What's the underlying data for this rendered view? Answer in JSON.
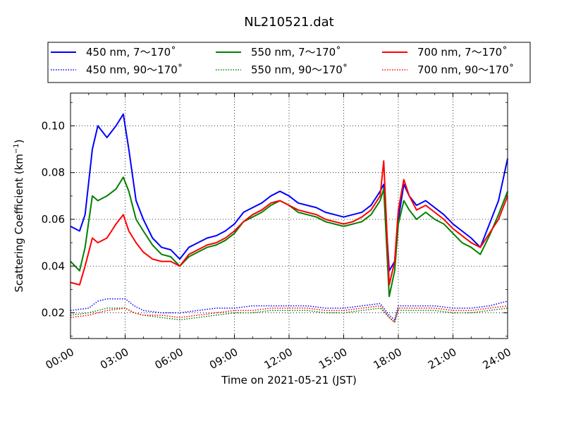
{
  "chart_data": {
    "type": "line",
    "title": "NL210521.dat",
    "xlabel": "Time on 2021-05-21 (JST)",
    "ylabel_main": "Scattering Coefficient (km",
    "ylabel_sup": "−1",
    "ylabel_end": ")",
    "xlim": [
      0,
      24
    ],
    "ylim": [
      0.009,
      0.114
    ],
    "grid": true,
    "legend_position": "top",
    "xticks": [
      {
        "value": 0,
        "label": "00:00"
      },
      {
        "value": 3,
        "label": "03:00"
      },
      {
        "value": 6,
        "label": "06:00"
      },
      {
        "value": 9,
        "label": "09:00"
      },
      {
        "value": 12,
        "label": "12:00"
      },
      {
        "value": 15,
        "label": "15:00"
      },
      {
        "value": 18,
        "label": "18:00"
      },
      {
        "value": 21,
        "label": "21:00"
      },
      {
        "value": 24,
        "label": "24:00"
      }
    ],
    "yticks": [
      {
        "value": 0.02,
        "label": "0.02"
      },
      {
        "value": 0.04,
        "label": "0.04"
      },
      {
        "value": 0.06,
        "label": "0.06"
      },
      {
        "value": 0.08,
        "label": "0.08"
      },
      {
        "value": 0.1,
        "label": "0.10"
      }
    ],
    "series": [
      {
        "name": "450 nm, 7～170˚",
        "color": "#0000ff",
        "style": "solid",
        "x": [
          0,
          0.5,
          0.8,
          1.2,
          1.5,
          2,
          2.5,
          2.9,
          3.2,
          3.6,
          4,
          4.5,
          5,
          5.5,
          6,
          6.5,
          7,
          7.5,
          8,
          8.5,
          9,
          9.5,
          10,
          10.5,
          11,
          11.5,
          12,
          12.5,
          13,
          13.5,
          14,
          14.5,
          15,
          15.5,
          16,
          16.5,
          17,
          17.2,
          17.5,
          17.8,
          18,
          18.3,
          18.6,
          19,
          19.5,
          20,
          20.5,
          21,
          21.5,
          22,
          22.5,
          23,
          23.5,
          24
        ],
        "y": [
          0.057,
          0.055,
          0.062,
          0.09,
          0.1,
          0.095,
          0.1,
          0.105,
          0.09,
          0.068,
          0.06,
          0.052,
          0.048,
          0.047,
          0.043,
          0.048,
          0.05,
          0.052,
          0.053,
          0.055,
          0.058,
          0.063,
          0.065,
          0.067,
          0.07,
          0.072,
          0.07,
          0.067,
          0.066,
          0.065,
          0.063,
          0.062,
          0.061,
          0.062,
          0.063,
          0.066,
          0.072,
          0.075,
          0.038,
          0.042,
          0.06,
          0.075,
          0.07,
          0.066,
          0.068,
          0.065,
          0.062,
          0.058,
          0.055,
          0.052,
          0.048,
          0.058,
          0.068,
          0.086
        ]
      },
      {
        "name": "550 nm, 7～170˚",
        "color": "#008000",
        "style": "solid",
        "x": [
          0,
          0.5,
          0.8,
          1.2,
          1.5,
          2,
          2.5,
          2.9,
          3.2,
          3.6,
          4,
          4.5,
          5,
          5.5,
          6,
          6.5,
          7,
          7.5,
          8,
          8.5,
          9,
          9.5,
          10,
          10.5,
          11,
          11.5,
          12,
          12.5,
          13,
          13.5,
          14,
          14.5,
          15,
          15.5,
          16,
          16.5,
          17,
          17.2,
          17.5,
          17.8,
          18,
          18.3,
          18.6,
          19,
          19.5,
          20,
          20.5,
          21,
          21.5,
          22,
          22.5,
          23,
          23.5,
          24
        ],
        "y": [
          0.042,
          0.038,
          0.048,
          0.07,
          0.068,
          0.07,
          0.073,
          0.078,
          0.072,
          0.06,
          0.055,
          0.049,
          0.045,
          0.044,
          0.04,
          0.044,
          0.046,
          0.048,
          0.049,
          0.051,
          0.054,
          0.059,
          0.061,
          0.063,
          0.066,
          0.068,
          0.066,
          0.063,
          0.062,
          0.061,
          0.059,
          0.058,
          0.057,
          0.058,
          0.059,
          0.062,
          0.068,
          0.073,
          0.027,
          0.038,
          0.058,
          0.068,
          0.064,
          0.06,
          0.063,
          0.06,
          0.058,
          0.054,
          0.05,
          0.048,
          0.045,
          0.053,
          0.062,
          0.072
        ]
      },
      {
        "name": "700 nm, 7～170˚",
        "color": "#ff0000",
        "style": "solid",
        "x": [
          0,
          0.5,
          0.8,
          1.2,
          1.5,
          2,
          2.5,
          2.9,
          3.2,
          3.6,
          4,
          4.5,
          5,
          5.5,
          6,
          6.5,
          7,
          7.5,
          8,
          8.5,
          9,
          9.5,
          10,
          10.5,
          11,
          11.5,
          12,
          12.5,
          13,
          13.5,
          14,
          14.5,
          15,
          15.5,
          16,
          16.5,
          17,
          17.2,
          17.5,
          17.8,
          18,
          18.3,
          18.6,
          19,
          19.5,
          20,
          20.5,
          21,
          21.5,
          22,
          22.5,
          23,
          23.5,
          24
        ],
        "y": [
          0.033,
          0.032,
          0.04,
          0.052,
          0.05,
          0.052,
          0.058,
          0.062,
          0.055,
          0.05,
          0.046,
          0.043,
          0.042,
          0.042,
          0.04,
          0.045,
          0.047,
          0.049,
          0.05,
          0.052,
          0.055,
          0.059,
          0.062,
          0.064,
          0.067,
          0.068,
          0.066,
          0.064,
          0.063,
          0.062,
          0.06,
          0.059,
          0.058,
          0.059,
          0.061,
          0.064,
          0.07,
          0.085,
          0.032,
          0.042,
          0.064,
          0.077,
          0.07,
          0.064,
          0.066,
          0.063,
          0.06,
          0.056,
          0.053,
          0.05,
          0.048,
          0.054,
          0.06,
          0.07
        ]
      },
      {
        "name": "450 nm, 90～170˚",
        "color": "#0000ff",
        "style": "dotted",
        "x": [
          0,
          1,
          1.5,
          2,
          3,
          3.5,
          4,
          5,
          6,
          7,
          8,
          9,
          10,
          11,
          12,
          13,
          14,
          15,
          16,
          17,
          17.5,
          17.8,
          18,
          19,
          20,
          21,
          22,
          23,
          24
        ],
        "y": [
          0.021,
          0.022,
          0.025,
          0.026,
          0.026,
          0.023,
          0.021,
          0.02,
          0.02,
          0.021,
          0.022,
          0.022,
          0.023,
          0.023,
          0.023,
          0.023,
          0.022,
          0.022,
          0.023,
          0.024,
          0.019,
          0.017,
          0.023,
          0.023,
          0.023,
          0.022,
          0.022,
          0.023,
          0.025
        ]
      },
      {
        "name": "550 nm, 90～170˚",
        "color": "#008000",
        "style": "dotted",
        "x": [
          0,
          1,
          1.5,
          2,
          3,
          3.5,
          4,
          5,
          6,
          7,
          8,
          9,
          10,
          11,
          12,
          13,
          14,
          15,
          16,
          17,
          17.5,
          17.8,
          18,
          19,
          20,
          21,
          22,
          23,
          24
        ],
        "y": [
          0.019,
          0.02,
          0.021,
          0.022,
          0.022,
          0.02,
          0.019,
          0.018,
          0.017,
          0.018,
          0.019,
          0.02,
          0.02,
          0.021,
          0.021,
          0.021,
          0.02,
          0.02,
          0.021,
          0.022,
          0.018,
          0.016,
          0.021,
          0.021,
          0.021,
          0.02,
          0.02,
          0.021,
          0.022
        ]
      },
      {
        "name": "700 nm, 90～170˚",
        "color": "#ff0000",
        "style": "dotted",
        "x": [
          0,
          1,
          1.5,
          2,
          3,
          3.5,
          4,
          5,
          6,
          7,
          8,
          9,
          10,
          11,
          12,
          13,
          14,
          15,
          16,
          17,
          17.5,
          17.8,
          18,
          19,
          20,
          21,
          22,
          23,
          24
        ],
        "y": [
          0.018,
          0.019,
          0.02,
          0.021,
          0.022,
          0.02,
          0.019,
          0.019,
          0.018,
          0.019,
          0.02,
          0.021,
          0.021,
          0.022,
          0.022,
          0.022,
          0.021,
          0.021,
          0.022,
          0.023,
          0.018,
          0.016,
          0.022,
          0.022,
          0.022,
          0.021,
          0.021,
          0.022,
          0.023
        ]
      }
    ]
  }
}
